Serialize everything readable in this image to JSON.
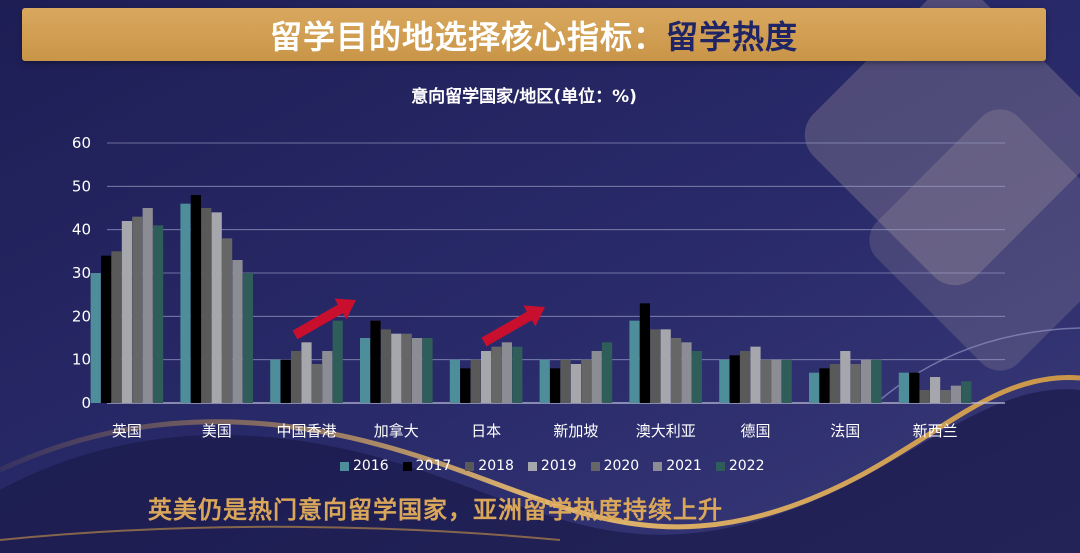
{
  "banner": {
    "title_main": "留学目的地选择核心指标：",
    "title_sub": "留学热度"
  },
  "footer": {
    "text": "英美仍是热门意向留学国家，亚洲留学热度持续上升"
  },
  "colors": {
    "background": "#23235e",
    "accent": "#c99548",
    "arrow": "#c8102e"
  },
  "chart_data": {
    "type": "bar",
    "title": "意向留学国家/地区(单位：%)",
    "xlabel": "",
    "ylabel": "",
    "ylim": [
      0,
      60
    ],
    "yticks": [
      "0",
      "10",
      "20",
      "30",
      "40",
      "50",
      "60"
    ],
    "grid": true,
    "legend_position": "bottom",
    "categories": [
      "英国",
      "美国",
      "中国香港",
      "加拿大",
      "日本",
      "新加坡",
      "澳大利亚",
      "德国",
      "法国",
      "新西兰"
    ],
    "series": [
      {
        "name": "2016",
        "color": "#4e8d9a",
        "values": [
          30,
          46,
          10,
          15,
          10,
          10,
          19,
          10,
          7,
          7
        ]
      },
      {
        "name": "2017",
        "color": "#000000",
        "values": [
          34,
          48,
          10,
          19,
          8,
          8,
          23,
          11,
          8,
          7
        ]
      },
      {
        "name": "2018",
        "color": "#595959",
        "values": [
          35,
          45,
          12,
          17,
          10,
          10,
          17,
          12,
          9,
          3
        ]
      },
      {
        "name": "2019",
        "color": "#a6a6ad",
        "values": [
          42,
          44,
          14,
          16,
          12,
          9,
          17,
          13,
          12,
          6
        ]
      },
      {
        "name": "2020",
        "color": "#666666",
        "values": [
          43,
          38,
          9,
          16,
          13,
          10,
          15,
          10,
          9,
          3
        ]
      },
      {
        "name": "2021",
        "color": "#8c8c94",
        "values": [
          45,
          33,
          12,
          15,
          14,
          12,
          14,
          10,
          10,
          4
        ]
      },
      {
        "name": "2022",
        "color": "#2f5d5a",
        "values": [
          41,
          30,
          19,
          15,
          13,
          14,
          12,
          10,
          10,
          5
        ]
      }
    ]
  }
}
